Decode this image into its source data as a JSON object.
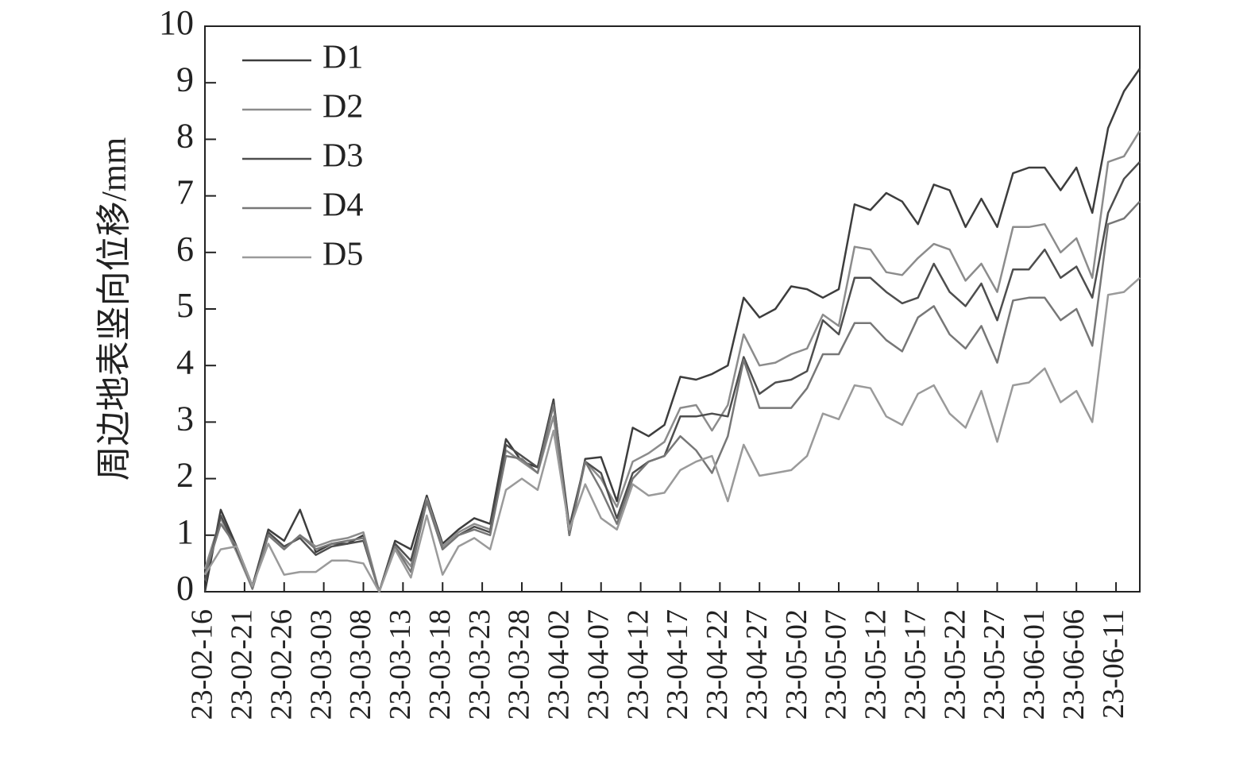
{
  "chart_data": {
    "type": "line",
    "title": "",
    "xlabel": "",
    "ylabel": "周边地表竖向位移/mm",
    "ylim": [
      0,
      10
    ],
    "yticks": [
      0,
      1,
      2,
      3,
      4,
      5,
      6,
      7,
      8,
      9,
      10
    ],
    "xlim": [
      "23-02-16",
      "23-06-14"
    ],
    "xtick_labels": [
      "23-02-16",
      "23-02-21",
      "23-02-26",
      "23-03-03",
      "23-03-08",
      "23-03-13",
      "23-03-18",
      "23-03-23",
      "23-03-28",
      "23-04-02",
      "23-04-07",
      "23-04-12",
      "23-04-17",
      "23-04-22",
      "23-04-27",
      "23-05-02",
      "23-05-07",
      "23-05-12",
      "23-05-17",
      "23-05-22",
      "23-05-27",
      "23-06-01",
      "23-06-06",
      "23-06-11"
    ],
    "grid": false,
    "legend_position": "top-left",
    "x": [
      "23-02-16",
      "23-02-18",
      "23-02-20",
      "23-02-22",
      "23-02-24",
      "23-02-26",
      "23-02-28",
      "23-03-02",
      "23-03-04",
      "23-03-06",
      "23-03-08",
      "23-03-10",
      "23-03-12",
      "23-03-14",
      "23-03-16",
      "23-03-18",
      "23-03-20",
      "23-03-22",
      "23-03-24",
      "23-03-26",
      "23-03-28",
      "23-03-30",
      "23-04-01",
      "23-04-03",
      "23-04-05",
      "23-04-07",
      "23-04-09",
      "23-04-11",
      "23-04-13",
      "23-04-15",
      "23-04-17",
      "23-04-19",
      "23-04-21",
      "23-04-23",
      "23-04-25",
      "23-04-27",
      "23-04-29",
      "23-05-01",
      "23-05-03",
      "23-05-05",
      "23-05-07",
      "23-05-09",
      "23-05-11",
      "23-05-13",
      "23-05-15",
      "23-05-17",
      "23-05-19",
      "23-05-21",
      "23-05-23",
      "23-05-25",
      "23-05-27",
      "23-05-29",
      "23-05-31",
      "23-06-02",
      "23-06-04",
      "23-06-06",
      "23-06-08",
      "23-06-10",
      "23-06-12",
      "23-06-14"
    ],
    "series": [
      {
        "name": "D1",
        "color": "#3d3d3d",
        "values": [
          0,
          1.45,
          0.8,
          0.1,
          1.1,
          0.9,
          1.45,
          0.7,
          0.85,
          0.85,
          1.0,
          0,
          0.9,
          0.75,
          1.7,
          0.85,
          1.1,
          1.3,
          1.2,
          2.7,
          2.3,
          2.2,
          3.4,
          1.0,
          2.35,
          2.38,
          1.6,
          2.9,
          2.75,
          2.95,
          3.8,
          3.75,
          3.85,
          4.0,
          5.2,
          4.85,
          5.0,
          5.4,
          5.35,
          5.2,
          5.35,
          6.85,
          6.75,
          7.05,
          6.9,
          6.5,
          7.2,
          7.1,
          6.45,
          6.95,
          6.45,
          7.4,
          7.5,
          7.5,
          7.1,
          7.5,
          6.7,
          8.2,
          8.85,
          9.25
        ]
      },
      {
        "name": "D2",
        "color": "#8c8c8c",
        "values": [
          0.4,
          1.3,
          0.7,
          0.05,
          1.0,
          0.75,
          1.0,
          0.8,
          0.9,
          0.95,
          1.05,
          0,
          0.8,
          0.45,
          1.65,
          0.8,
          1.05,
          1.2,
          1.1,
          2.5,
          2.3,
          2.1,
          3.1,
          1.1,
          2.3,
          2.0,
          1.5,
          2.3,
          2.45,
          2.65,
          3.25,
          3.3,
          2.85,
          3.3,
          4.55,
          4.0,
          4.05,
          4.2,
          4.3,
          4.9,
          4.7,
          6.1,
          6.05,
          5.65,
          5.6,
          5.9,
          6.15,
          6.05,
          5.5,
          5.8,
          5.3,
          6.45,
          6.45,
          6.5,
          6.0,
          6.25,
          5.55,
          7.6,
          7.7,
          8.15
        ]
      },
      {
        "name": "D3",
        "color": "#4e4e4e",
        "values": [
          0.2,
          1.35,
          0.75,
          0.1,
          1.05,
          0.8,
          0.95,
          0.65,
          0.8,
          0.85,
          0.9,
          0,
          0.85,
          0.55,
          1.6,
          0.75,
          1.0,
          1.15,
          1.05,
          2.6,
          2.4,
          2.2,
          3.35,
          1.15,
          2.3,
          2.1,
          1.3,
          2.1,
          2.3,
          2.4,
          3.1,
          3.1,
          3.15,
          3.1,
          4.15,
          3.5,
          3.7,
          3.75,
          3.9,
          4.8,
          4.55,
          5.55,
          5.55,
          5.3,
          5.1,
          5.2,
          5.8,
          5.3,
          5.05,
          5.45,
          4.8,
          5.7,
          5.7,
          6.05,
          5.55,
          5.75,
          5.2,
          6.7,
          7.3,
          7.6
        ]
      },
      {
        "name": "D4",
        "color": "#777777",
        "values": [
          0.3,
          1.2,
          0.8,
          0.05,
          1.0,
          0.75,
          1.0,
          0.75,
          0.85,
          0.9,
          0.95,
          0,
          0.8,
          0.35,
          1.6,
          0.75,
          1.0,
          1.1,
          1.0,
          2.4,
          2.35,
          2.1,
          3.3,
          1.0,
          2.3,
          1.8,
          1.2,
          2.0,
          2.3,
          2.4,
          2.75,
          2.5,
          2.1,
          2.75,
          4.1,
          3.25,
          3.25,
          3.25,
          3.6,
          4.2,
          4.2,
          4.75,
          4.75,
          4.45,
          4.25,
          4.85,
          5.05,
          4.55,
          4.3,
          4.7,
          4.05,
          5.15,
          5.2,
          5.2,
          4.8,
          5.0,
          4.35,
          6.5,
          6.6,
          6.9
        ]
      },
      {
        "name": "D5",
        "color": "#9a9a9a",
        "values": [
          0.3,
          0.75,
          0.8,
          0.1,
          0.85,
          0.3,
          0.35,
          0.35,
          0.55,
          0.55,
          0.5,
          0,
          0.75,
          0.25,
          1.35,
          0.3,
          0.8,
          0.95,
          0.75,
          1.8,
          2.0,
          1.8,
          2.85,
          1.1,
          1.9,
          1.3,
          1.1,
          1.9,
          1.7,
          1.75,
          2.15,
          2.3,
          2.4,
          1.6,
          2.6,
          2.05,
          2.1,
          2.15,
          2.4,
          3.15,
          3.05,
          3.65,
          3.6,
          3.1,
          2.95,
          3.5,
          3.65,
          3.15,
          2.9,
          3.55,
          2.65,
          3.65,
          3.7,
          3.95,
          3.35,
          3.55,
          3.0,
          5.25,
          5.3,
          5.55
        ]
      }
    ]
  }
}
